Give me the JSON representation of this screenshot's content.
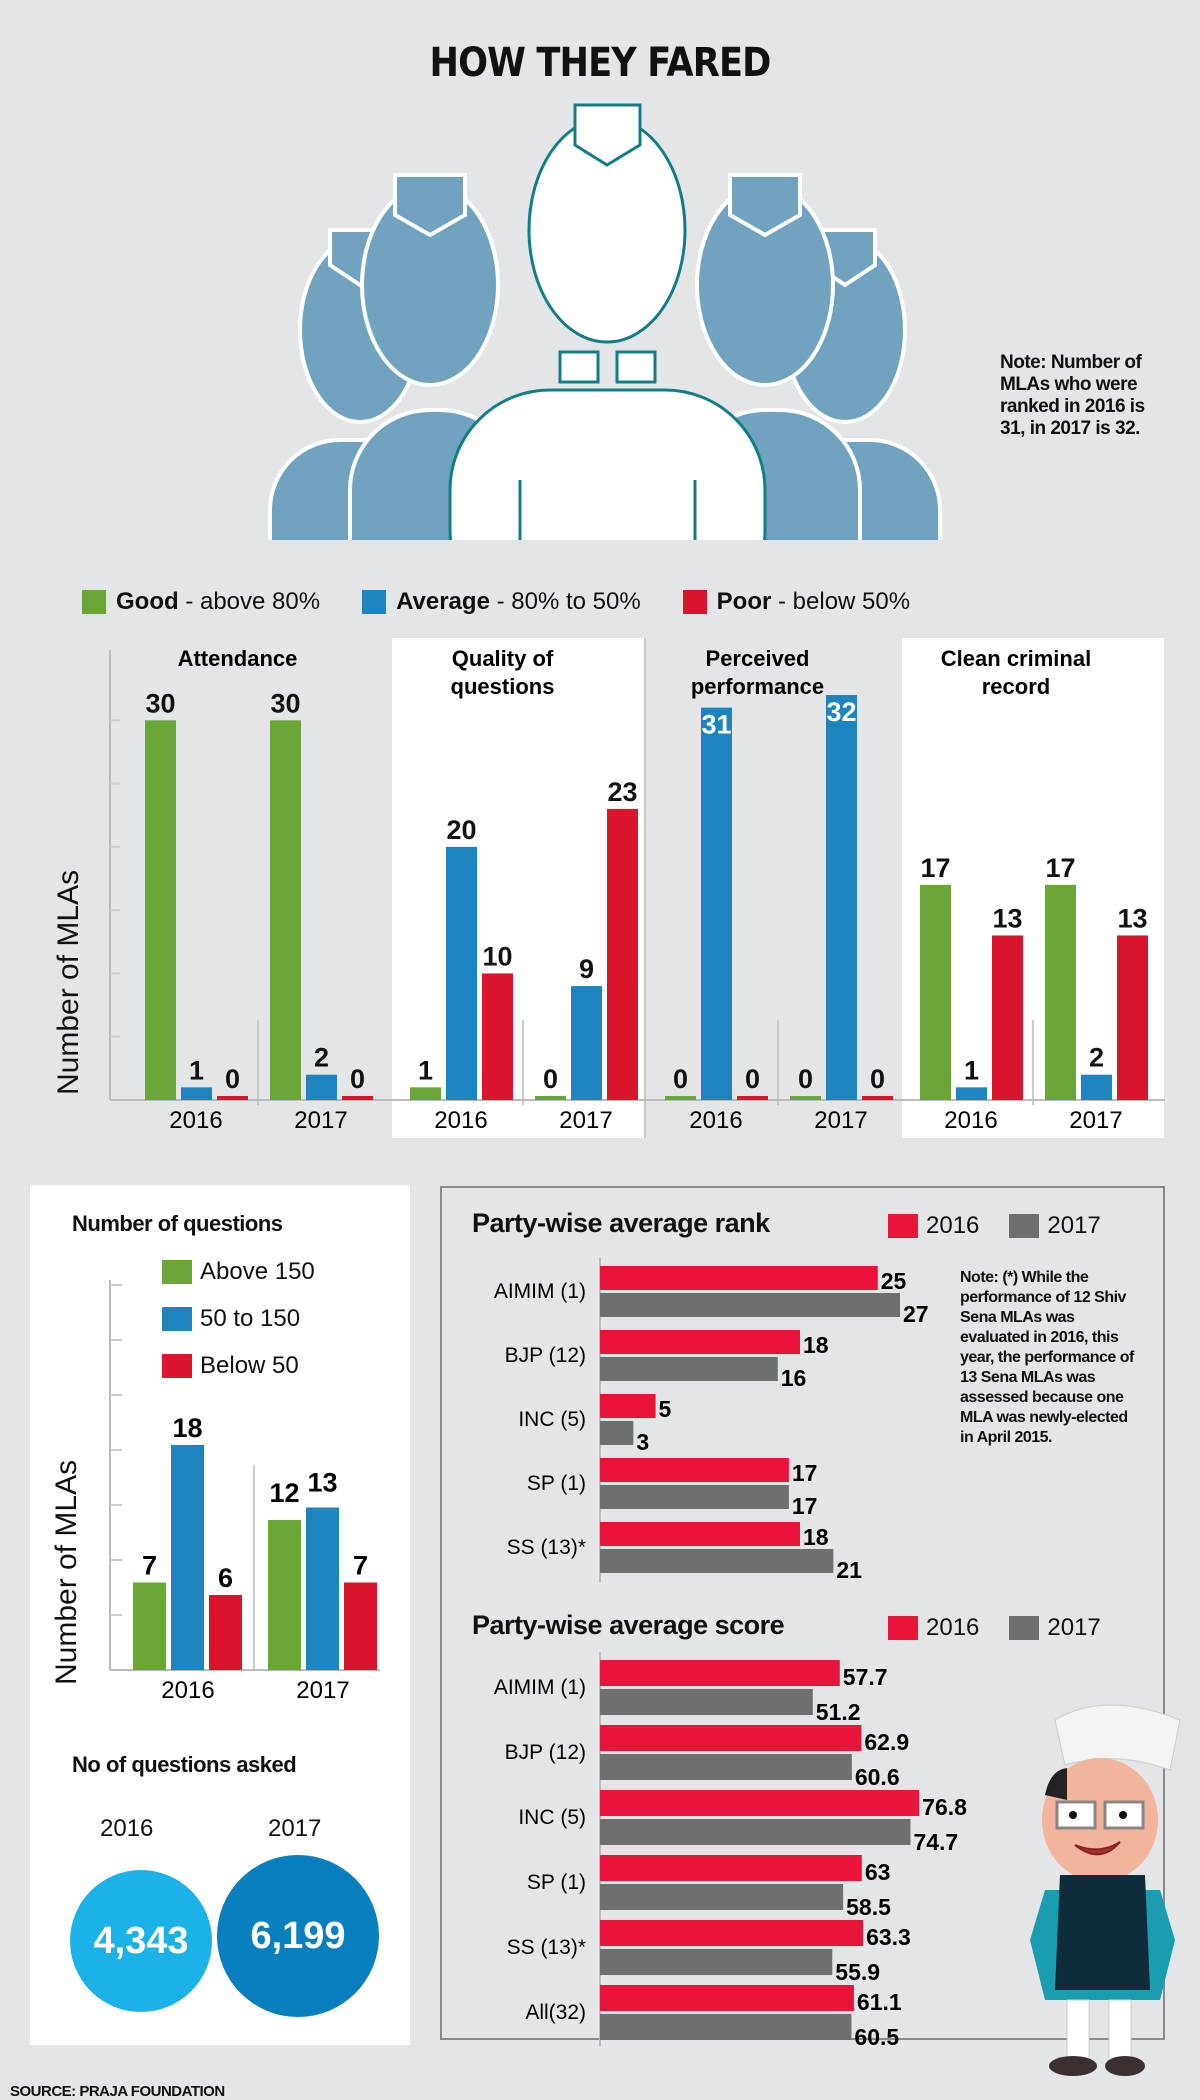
{
  "title": "HOW THEY FARED",
  "top_note": "Note: Number of MLAs who were ranked in 2016 is 31, in 2017 is 32.",
  "colors": {
    "good": "#6aa636",
    "average": "#1c84bf",
    "poor": "#d8152c",
    "y2016": "#e8143a",
    "y2017": "#6f6f6f",
    "bubble2016": "#1bb2e8",
    "bubble2017": "#0a7fbd",
    "people": "#6fa3c0"
  },
  "legend": [
    {
      "bold": "Good",
      "rest": " - above 80%",
      "color_key": "good"
    },
    {
      "bold": "Average",
      "rest": " - 80% to 50%",
      "color_key": "average"
    },
    {
      "bold": "Poor",
      "rest": " - below 50%",
      "color_key": "poor"
    }
  ],
  "chart_data": [
    {
      "type": "bar",
      "title": "Attendance / Quality of questions / Perceived performance / Clean criminal record",
      "ylabel": "Number of MLAs",
      "ylim": [
        0,
        32
      ],
      "series_names": [
        "Good - above 80%",
        "Average - 80% to 50%",
        "Poor - below 50%"
      ],
      "panels": [
        {
          "title": "Attendance",
          "years": [
            {
              "year": "2016",
              "values": [
                30,
                1,
                0
              ]
            },
            {
              "year": "2017",
              "values": [
                30,
                2,
                0
              ]
            }
          ]
        },
        {
          "title": "Quality of questions",
          "years": [
            {
              "year": "2016",
              "values": [
                1,
                20,
                10
              ]
            },
            {
              "year": "2017",
              "values": [
                0,
                9,
                23
              ]
            }
          ]
        },
        {
          "title": "Perceived performance",
          "years": [
            {
              "year": "2016",
              "values": [
                0,
                31,
                0
              ]
            },
            {
              "year": "2017",
              "values": [
                0,
                32,
                0
              ]
            }
          ]
        },
        {
          "title": "Clean criminal record",
          "years": [
            {
              "year": "2016",
              "values": [
                17,
                1,
                13
              ]
            },
            {
              "year": "2017",
              "values": [
                17,
                2,
                13
              ]
            }
          ]
        }
      ]
    },
    {
      "type": "bar",
      "title": "Number of questions",
      "ylabel": "Number of MLAs",
      "ylim": [
        0,
        35
      ],
      "categories": [
        "2016",
        "2017"
      ],
      "series": [
        {
          "name": "Above 150",
          "values": [
            7,
            12
          ]
        },
        {
          "name": "50 to 150",
          "values": [
            18,
            13
          ]
        },
        {
          "name": "Below 50",
          "values": [
            6,
            7
          ]
        }
      ]
    },
    {
      "type": "bar",
      "orientation": "horizontal",
      "title": "Party-wise average rank",
      "categories": [
        "AIMIM (1)",
        "BJP (12)",
        "INC (5)",
        "SP (1)",
        "SS (13)*"
      ],
      "series": [
        {
          "name": "2016",
          "values": [
            25,
            18,
            5,
            17,
            18
          ]
        },
        {
          "name": "2017",
          "values": [
            27,
            16,
            3,
            17,
            21
          ]
        }
      ],
      "xlim": [
        0,
        27
      ]
    },
    {
      "type": "bar",
      "orientation": "horizontal",
      "title": "Party-wise average score",
      "categories": [
        "AIMIM (1)",
        "BJP (12)",
        "INC (5)",
        "SP (1)",
        "SS (13)*",
        "All(32)"
      ],
      "series": [
        {
          "name": "2016",
          "values": [
            57.7,
            62.9,
            76.8,
            63,
            63.3,
            61.1
          ]
        },
        {
          "name": "2017",
          "values": [
            51.2,
            60.6,
            74.7,
            58.5,
            55.9,
            60.5
          ]
        }
      ],
      "xlim": [
        0,
        77
      ]
    }
  ],
  "questions": {
    "title": "Number of questions",
    "legend": [
      "Above 150",
      "50 to 150",
      "Below 50"
    ],
    "ylabel": "Number of MLAs",
    "asked_title": "No of questions asked",
    "asked": [
      {
        "year": "2016",
        "value": "4,343"
      },
      {
        "year": "2017",
        "value": "6,199"
      }
    ]
  },
  "rank": {
    "title": "Party-wise average rank",
    "legend": [
      "2016",
      "2017"
    ],
    "note": "Note: (*) While the performance of 12 Shiv Sena MLAs was evaluated in 2016, this year, the performance of 13 Sena MLAs was assessed because one MLA was newly-elected in April 2015."
  },
  "score": {
    "title": "Party-wise average score",
    "legend": [
      "2016",
      "2017"
    ]
  },
  "source": "SOURCE: PRAJA FOUNDATION"
}
